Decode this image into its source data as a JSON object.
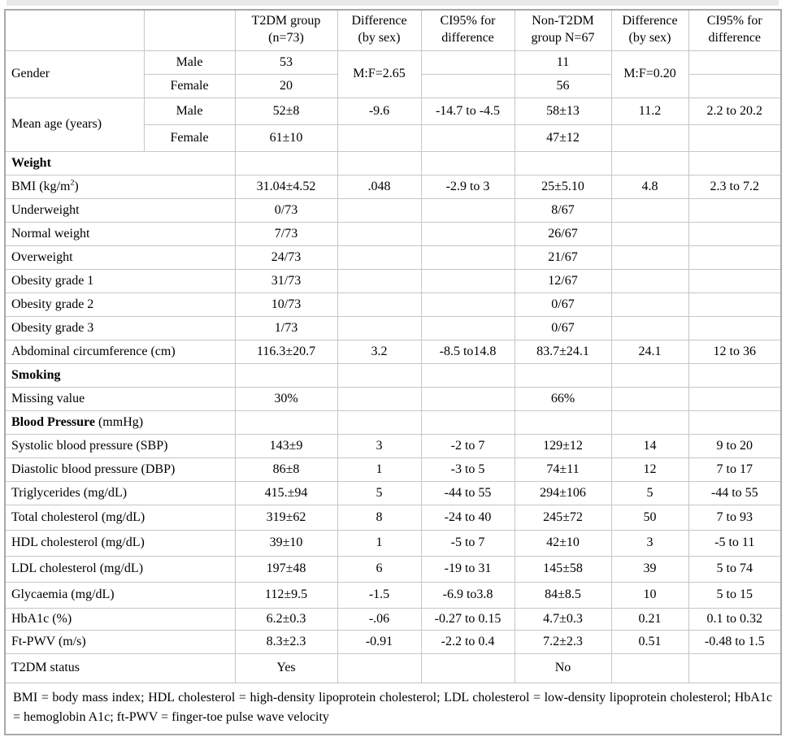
{
  "page": {
    "top_strip_color": "#e9e9e9",
    "grid_color": "#c6c6c6",
    "outer_border_color": "#a8a8a8",
    "text_color": "#000000"
  },
  "table": {
    "header": [
      "",
      "",
      "T2DM group\n(n=73)",
      "Difference\n(by sex)",
      "CI95% for\ndifference",
      "Non-T2DM\ngroup N=67",
      "Difference\n(by sex)",
      "CI95% for\ndifference"
    ],
    "rows": [
      {
        "h": 29,
        "cells": [
          {
            "t": "Gender",
            "rs": 2,
            "cls": "label"
          },
          {
            "t": "Male"
          },
          {
            "t": "53"
          },
          {
            "t": "M:F=2.65",
            "rs": 2
          },
          {
            "t": ""
          },
          {
            "t": "11"
          },
          {
            "t": "M:F=0.20",
            "rs": 2
          },
          {
            "t": ""
          }
        ]
      },
      {
        "h": 29,
        "cells": [
          {
            "t": "Female"
          },
          {
            "t": "20"
          },
          {
            "t": ""
          },
          {
            "t": "56"
          },
          {
            "t": ""
          }
        ]
      },
      {
        "h": 33,
        "cells": [
          {
            "t": "Mean age (years)",
            "rs": 2,
            "cls": "label"
          },
          {
            "t": "Male"
          },
          {
            "t": "52±8"
          },
          {
            "t": "-9.6"
          },
          {
            "t": "-14.7 to -4.5"
          },
          {
            "t": "58±13"
          },
          {
            "t": "11.2"
          },
          {
            "t": "2.2 to 20.2"
          }
        ]
      },
      {
        "h": 33,
        "cells": [
          {
            "t": "Female"
          },
          {
            "t": "61±10"
          },
          {
            "t": ""
          },
          {
            "t": ""
          },
          {
            "t": "47±12"
          },
          {
            "t": ""
          },
          {
            "t": ""
          }
        ]
      },
      {
        "h": 29,
        "cells": [
          {
            "parts": [
              {
                "t": "Weight",
                "b": true
              }
            ],
            "cs": 2,
            "cls": "label"
          },
          {
            "t": ""
          },
          {
            "t": ""
          },
          {
            "t": ""
          },
          {
            "t": ""
          },
          {
            "t": ""
          },
          {
            "t": ""
          }
        ]
      },
      {
        "h": 29,
        "cells": [
          {
            "parts": [
              {
                "t": "BMI (kg/m"
              },
              {
                "t": "2",
                "sup": true
              },
              {
                "t": ")"
              }
            ],
            "cs": 2,
            "cls": "label"
          },
          {
            "t": "31.04±4.52"
          },
          {
            "t": ".048"
          },
          {
            "t": "-2.9 to 3"
          },
          {
            "t": "25±5.10"
          },
          {
            "t": "4.8"
          },
          {
            "t": "2.3 to 7.2"
          }
        ]
      },
      {
        "h": 29,
        "cells": [
          {
            "t": "Underweight",
            "cs": 2,
            "cls": "label"
          },
          {
            "t": "0/73"
          },
          {
            "t": ""
          },
          {
            "t": ""
          },
          {
            "t": "8/67"
          },
          {
            "t": ""
          },
          {
            "t": ""
          }
        ]
      },
      {
        "h": 29,
        "cells": [
          {
            "t": "Normal weight",
            "cs": 2,
            "cls": "label"
          },
          {
            "t": "7/73"
          },
          {
            "t": ""
          },
          {
            "t": ""
          },
          {
            "t": "26/67"
          },
          {
            "t": ""
          },
          {
            "t": ""
          }
        ]
      },
      {
        "h": 29,
        "cells": [
          {
            "t": "Overweight",
            "cs": 2,
            "cls": "label"
          },
          {
            "t": "24/73"
          },
          {
            "t": ""
          },
          {
            "t": ""
          },
          {
            "t": "21/67"
          },
          {
            "t": ""
          },
          {
            "t": ""
          }
        ]
      },
      {
        "h": 29,
        "cells": [
          {
            "t": "Obesity grade 1",
            "cs": 2,
            "cls": "label"
          },
          {
            "t": "31/73"
          },
          {
            "t": ""
          },
          {
            "t": ""
          },
          {
            "t": "12/67"
          },
          {
            "t": ""
          },
          {
            "t": ""
          }
        ]
      },
      {
        "h": 29,
        "cells": [
          {
            "t": "Obesity grade 2",
            "cs": 2,
            "cls": "label"
          },
          {
            "t": "10/73"
          },
          {
            "t": ""
          },
          {
            "t": ""
          },
          {
            "t": "0/67"
          },
          {
            "t": ""
          },
          {
            "t": ""
          }
        ]
      },
      {
        "h": 29,
        "cells": [
          {
            "t": "Obesity grade 3",
            "cs": 2,
            "cls": "label"
          },
          {
            "t": "1/73"
          },
          {
            "t": ""
          },
          {
            "t": ""
          },
          {
            "t": "0/67"
          },
          {
            "t": ""
          },
          {
            "t": ""
          }
        ]
      },
      {
        "h": 29,
        "cells": [
          {
            "t": "Abdominal circumference (cm)",
            "cs": 2,
            "cls": "label"
          },
          {
            "t": "116.3±20.7"
          },
          {
            "t": "3.2"
          },
          {
            "t": "-8.5 to14.8"
          },
          {
            "t": "83.7±24.1"
          },
          {
            "t": "24.1"
          },
          {
            "t": "12 to 36"
          }
        ]
      },
      {
        "h": 29,
        "cells": [
          {
            "parts": [
              {
                "t": "Smoking",
                "b": true
              }
            ],
            "cs": 2,
            "cls": "label"
          },
          {
            "t": ""
          },
          {
            "t": ""
          },
          {
            "t": ""
          },
          {
            "t": ""
          },
          {
            "t": ""
          },
          {
            "t": ""
          }
        ]
      },
      {
        "h": 29,
        "cells": [
          {
            "t": "Missing value",
            "cs": 2,
            "cls": "label"
          },
          {
            "t": "30%"
          },
          {
            "t": ""
          },
          {
            "t": ""
          },
          {
            "t": "66%"
          },
          {
            "t": ""
          },
          {
            "t": ""
          }
        ]
      },
      {
        "h": 29,
        "cells": [
          {
            "parts": [
              {
                "t": "Blood Pressure",
                "b": true
              },
              {
                "t": " (mmHg)"
              }
            ],
            "cs": 2,
            "cls": "label"
          },
          {
            "t": ""
          },
          {
            "t": ""
          },
          {
            "t": ""
          },
          {
            "t": ""
          },
          {
            "t": ""
          },
          {
            "t": ""
          }
        ]
      },
      {
        "h": 29,
        "cells": [
          {
            "t": "Systolic blood pressure (SBP)",
            "cs": 2,
            "cls": "label"
          },
          {
            "t": "143±9"
          },
          {
            "t": "3"
          },
          {
            "t": "-2 to 7"
          },
          {
            "t": "129±12"
          },
          {
            "t": "14"
          },
          {
            "t": "9 to 20"
          }
        ]
      },
      {
        "h": 29,
        "cells": [
          {
            "t": "Diastolic blood pressure (DBP)",
            "cs": 2,
            "cls": "label"
          },
          {
            "t": "86±8"
          },
          {
            "t": "1"
          },
          {
            "t": "-3 to 5"
          },
          {
            "t": "74±11"
          },
          {
            "t": "12"
          },
          {
            "t": "7 to 17"
          }
        ]
      },
      {
        "h": 29,
        "cells": [
          {
            "t": "Triglycerides (mg/dL)",
            "cs": 2,
            "cls": "label"
          },
          {
            "t": "415.±94"
          },
          {
            "t": "5"
          },
          {
            "t": "-44 to 55"
          },
          {
            "t": "294±106"
          },
          {
            "t": "5"
          },
          {
            "t": "-44 to 55"
          }
        ]
      },
      {
        "h": 31,
        "cells": [
          {
            "t": "Total cholesterol (mg/dL)",
            "cs": 2,
            "cls": "label"
          },
          {
            "t": "319±62"
          },
          {
            "t": "8"
          },
          {
            "t": "-24 to 40"
          },
          {
            "t": "245±72"
          },
          {
            "t": "50"
          },
          {
            "t": "7 to 93"
          }
        ]
      },
      {
        "h": 32,
        "cells": [
          {
            "t": "HDL cholesterol (mg/dL)",
            "cs": 2,
            "cls": "label"
          },
          {
            "t": "39±10"
          },
          {
            "t": "1"
          },
          {
            "t": "-5 to 7"
          },
          {
            "t": "42±10"
          },
          {
            "t": "3"
          },
          {
            "t": "-5 to 11"
          }
        ]
      },
      {
        "h": 32,
        "cells": [
          {
            "t": "LDL cholesterol (mg/dL)",
            "cs": 2,
            "cls": "label"
          },
          {
            "t": "197±48"
          },
          {
            "t": "6"
          },
          {
            "t": "-19 to 31"
          },
          {
            "t": "145±58"
          },
          {
            "t": "39"
          },
          {
            "t": "5 to 74"
          }
        ]
      },
      {
        "h": 32,
        "cells": [
          {
            "t": "Glycaemia (mg/dL)",
            "cs": 2,
            "cls": "label"
          },
          {
            "t": "112±9.5"
          },
          {
            "t": "-1.5"
          },
          {
            "t": "-6.9 to3.8"
          },
          {
            "t": "84±8.5"
          },
          {
            "t": "10"
          },
          {
            "t": "5 to 15"
          }
        ]
      },
      {
        "h": 27,
        "cells": [
          {
            "t": "HbA1c (%)",
            "cs": 2,
            "cls": "label"
          },
          {
            "t": "6.2±0.3"
          },
          {
            "t": "-.06"
          },
          {
            "t": "-0.27 to 0.15"
          },
          {
            "t": "4.7±0.3"
          },
          {
            "t": "0.21"
          },
          {
            "t": "0.1 to 0.32"
          }
        ]
      },
      {
        "h": 29,
        "cells": [
          {
            "t": "Ft-PWV (m/s)",
            "cs": 2,
            "cls": "label"
          },
          {
            "t": "8.3±2.3"
          },
          {
            "t": "-0.91"
          },
          {
            "t": "-2.2 to 0.4"
          },
          {
            "t": "7.2±2.3"
          },
          {
            "t": "0.51"
          },
          {
            "t": "-0.48 to 1.5"
          }
        ]
      },
      {
        "h": 36,
        "cells": [
          {
            "t": "T2DM status",
            "cs": 2,
            "cls": "label"
          },
          {
            "t": "Yes"
          },
          {
            "t": ""
          },
          {
            "t": ""
          },
          {
            "t": "No"
          },
          {
            "t": ""
          },
          {
            "t": ""
          }
        ]
      },
      {
        "h": 56,
        "cells": [
          {
            "t": "BMI = body mass index; HDL cholesterol = high-density lipoprotein cholesterol; LDL cholesterol = low-density lipoprotein cholesterol; HbA1c = hemoglobin A1c; ft-PWV = finger-toe pulse wave velocity",
            "cs": 8,
            "cls": "footnote"
          }
        ]
      }
    ]
  }
}
